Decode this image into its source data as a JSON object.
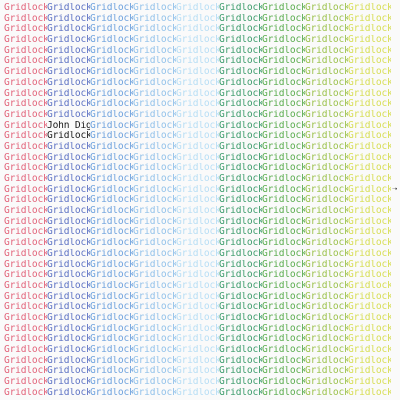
{
  "cover": {
    "word": "Gridlock",
    "featured_text": "John Digweed",
    "featured_text_suffix": "_",
    "rows": 37,
    "columns": 9,
    "column_colors": [
      "#e2637a",
      "#5d72c4",
      "#6ea2de",
      "#92c2ea",
      "#b7def5",
      "#3c9c6c",
      "#5aac4e",
      "#9cc24c",
      "#d7de54"
    ],
    "dark_color": "#1a1a1a",
    "featured_cell": {
      "row": 11,
      "column": 1
    },
    "dark_word_cell": {
      "row": 12,
      "column": 1
    },
    "arrow_icon": "arrow-right-icon"
  }
}
